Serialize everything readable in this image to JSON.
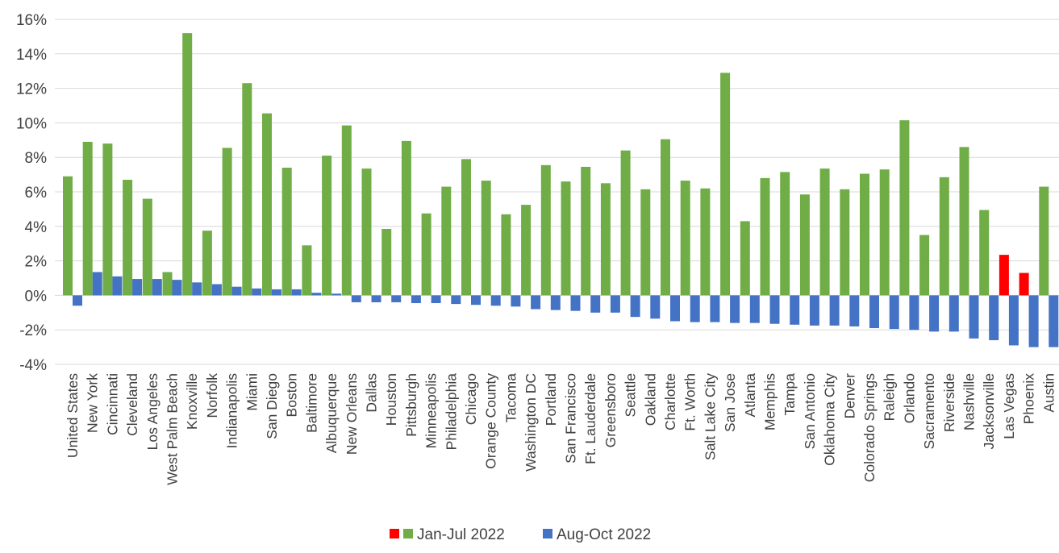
{
  "chart_data": {
    "type": "bar",
    "title": "",
    "xlabel": "",
    "ylabel": "",
    "ylim": [
      -0.04,
      0.16
    ],
    "y_ticks": [
      "-4%",
      "-2%",
      "0%",
      "2%",
      "4%",
      "6%",
      "8%",
      "10%",
      "12%",
      "14%",
      "16%"
    ],
    "grid": true,
    "legend_position": "bottom-center",
    "categories": [
      "United States",
      "New York",
      "Cincinnati",
      "Cleveland",
      "Los Angeles",
      "West Palm Beach",
      "Knoxville",
      "Norfolk",
      "Indianapolis",
      "Miami",
      "San Diego",
      "Boston",
      "Baltimore",
      "Albuquerque",
      "New Orleans",
      "Dallas",
      "Houston",
      "Pittsburgh",
      "Minneapolis",
      "Philadelphia",
      "Chicago",
      "Orange County",
      "Tacoma",
      "Washington DC",
      "Portland",
      "San Francisco",
      "Ft. Lauderdale",
      "Greensboro",
      "Seattle",
      "Oakland",
      "Charlotte",
      "Ft. Worth",
      "Salt Lake City",
      "San Jose",
      "Atlanta",
      "Memphis",
      "Tampa",
      "San Antonio",
      "Oklahoma City",
      "Denver",
      "Colorado Springs",
      "Raleigh",
      "Orlando",
      "Sacramento",
      "Riverside",
      "Nashville",
      "Jacksonville",
      "Las Vegas",
      "Phoenix",
      "Austin"
    ],
    "series": [
      {
        "name": "Jan-Jul 2022",
        "color": "#70ad47",
        "highlight_color": "#ff0000",
        "highlight_categories": [
          "Las Vegas",
          "Phoenix"
        ],
        "values": [
          0.069,
          0.089,
          0.088,
          0.067,
          0.056,
          0.0135,
          0.152,
          0.0375,
          0.0855,
          0.123,
          0.1055,
          0.074,
          0.029,
          0.081,
          0.0985,
          0.0735,
          0.0385,
          0.0895,
          0.0475,
          0.063,
          0.079,
          0.0665,
          0.047,
          0.0525,
          0.0755,
          0.066,
          0.0745,
          0.065,
          0.084,
          0.0615,
          0.0905,
          0.0665,
          0.062,
          0.129,
          0.043,
          0.068,
          0.0715,
          0.0585,
          0.0735,
          0.0615,
          0.0705,
          0.073,
          0.1015,
          0.035,
          0.0685,
          0.086,
          0.0495,
          0.0235,
          0.013,
          0.063
        ]
      },
      {
        "name": "Aug-Oct 2022",
        "color": "#4472c4",
        "values": [
          -0.006,
          0.0135,
          0.011,
          0.0095,
          0.0095,
          0.009,
          0.0075,
          0.0065,
          0.005,
          0.004,
          0.0035,
          0.0035,
          0.0015,
          0.001,
          -0.004,
          -0.004,
          -0.004,
          -0.0045,
          -0.0045,
          -0.005,
          -0.0055,
          -0.006,
          -0.0065,
          -0.008,
          -0.0085,
          -0.009,
          -0.01,
          -0.01,
          -0.0125,
          -0.0135,
          -0.015,
          -0.0155,
          -0.0155,
          -0.016,
          -0.016,
          -0.0165,
          -0.017,
          -0.0175,
          -0.0175,
          -0.018,
          -0.019,
          -0.0195,
          -0.02,
          -0.021,
          -0.021,
          -0.025,
          -0.026,
          -0.029,
          -0.03,
          -0.03
        ]
      }
    ]
  }
}
